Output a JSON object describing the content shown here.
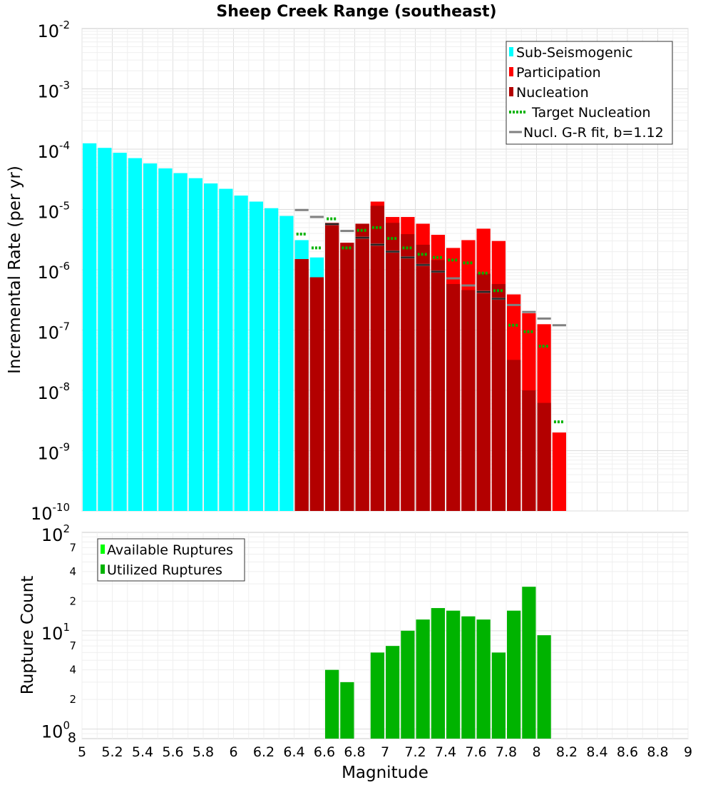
{
  "chart_data": [
    {
      "type": "bar",
      "title": "Sheep Creek Range (southeast)",
      "xlabel": "Magnitude",
      "ylabel": "Incremental Rate (per yr)",
      "yscale": "log",
      "xlim": [
        5,
        9
      ],
      "ylim": [
        1e-10,
        0.01
      ],
      "y_tick_labels": [
        {
          "value": 0.01,
          "base": "10",
          "exp": "-2"
        },
        {
          "value": 0.001,
          "base": "10",
          "exp": "-3"
        },
        {
          "value": 0.0001,
          "base": "10",
          "exp": "-4"
        },
        {
          "value": 1e-05,
          "base": "10",
          "exp": "-5"
        },
        {
          "value": 1e-06,
          "base": "10",
          "exp": "-6"
        },
        {
          "value": 1e-07,
          "base": "10",
          "exp": "-7"
        },
        {
          "value": 1e-08,
          "base": "10",
          "exp": "-8"
        },
        {
          "value": 1e-09,
          "base": "10",
          "exp": "-9"
        },
        {
          "value": 1e-10,
          "base": "10",
          "exp": "-10"
        }
      ],
      "bin_width": 0.1,
      "legend": {
        "position": "top-right",
        "entries": [
          {
            "label": "Sub-Seismogenic",
            "color": "#00ffff",
            "style": "box"
          },
          {
            "label": "Participation",
            "color": "#ff0000",
            "style": "box"
          },
          {
            "label": "Nucleation",
            "color": "#b30000",
            "style": "box"
          },
          {
            "label": "Target Nucleation",
            "color": "#00b300",
            "style": "dotted"
          },
          {
            "label": "Nucl. G-R fit, b=1.12",
            "color": "#808080",
            "style": "line"
          }
        ]
      },
      "series": [
        {
          "name": "Sub-Seismogenic",
          "color": "#00ffff",
          "x": [
            5.05,
            5.15,
            5.25,
            5.35,
            5.45,
            5.55,
            5.65,
            5.75,
            5.85,
            5.95,
            6.05,
            6.15,
            6.25,
            6.35,
            6.45,
            6.55
          ],
          "values": [
            0.000125,
            0.000105,
            8.7e-05,
            7.1e-05,
            5.8e-05,
            4.8e-05,
            4e-05,
            3.3e-05,
            2.7e-05,
            2.2e-05,
            1.7e-05,
            1.35e-05,
            1.05e-05,
            7.8e-06,
            3.1e-06,
            1.6e-06
          ]
        },
        {
          "name": "Participation",
          "color": "#ff0000",
          "x": [
            6.45,
            6.55,
            6.65,
            6.75,
            6.85,
            6.95,
            7.05,
            7.15,
            7.25,
            7.35,
            7.45,
            7.55,
            7.65,
            7.75,
            7.85,
            7.95,
            8.05,
            8.15
          ],
          "values": [
            1.5e-06,
            7.5e-07,
            6e-06,
            2.8e-06,
            5.8e-06,
            1.35e-05,
            7.5e-06,
            7.5e-06,
            5.8e-06,
            3.8e-06,
            2.3e-06,
            3.1e-06,
            4.8e-06,
            3e-06,
            3.9e-07,
            1.9e-07,
            1.25e-07,
            2e-09
          ]
        },
        {
          "name": "Nucleation",
          "color": "#b30000",
          "x": [
            6.45,
            6.55,
            6.65,
            6.75,
            6.85,
            6.95,
            7.05,
            7.15,
            7.25,
            7.35,
            7.45,
            7.55,
            7.65,
            7.75,
            7.85,
            7.95,
            8.05
          ],
          "values": [
            1.5e-06,
            7.5e-07,
            6e-06,
            2.8e-06,
            5.8e-06,
            1.15e-05,
            6e-06,
            3.9e-06,
            2.6e-06,
            1.45e-06,
            5.8e-07,
            4.6e-07,
            8.6e-07,
            5.8e-07,
            3.2e-08,
            1e-08,
            6.2e-09
          ]
        },
        {
          "name": "Target Nucleation",
          "color": "#00b300",
          "x": [
            6.45,
            6.55,
            6.65,
            6.75,
            6.85,
            6.95,
            7.05,
            7.15,
            7.25,
            7.35,
            7.45,
            7.55,
            7.65,
            7.75,
            7.85,
            7.95,
            8.05,
            8.15
          ],
          "values": [
            3.9e-06,
            2.3e-06,
            7e-06,
            2.3e-06,
            4.5e-06,
            5e-06,
            3.3e-06,
            2.3e-06,
            1.8e-06,
            1.6e-06,
            1.45e-06,
            1.3e-06,
            8.8e-07,
            4.5e-07,
            1.2e-07,
            9.4e-08,
            5.4e-08,
            3e-09
          ]
        },
        {
          "name": "Nucl. G-R fit, b=1.12",
          "color": "#808080",
          "x": [
            6.45,
            6.55,
            6.65,
            6.75,
            6.85,
            6.95,
            7.05,
            7.15,
            7.25,
            7.35,
            7.45,
            7.55,
            7.65,
            7.75,
            7.85,
            7.95,
            8.05,
            8.15
          ],
          "values": [
            9.8e-06,
            7.5e-06,
            5.7e-06,
            4.4e-06,
            3.4e-06,
            2.6e-06,
            2e-06,
            1.6e-06,
            1.2e-06,
            9.3e-07,
            7.2e-07,
            5.5e-07,
            4.3e-07,
            3.3e-07,
            2.6e-07,
            2e-07,
            1.55e-07,
            1.2e-07
          ]
        }
      ]
    },
    {
      "type": "bar",
      "xlabel": "Magnitude",
      "ylabel": "Rupture Count",
      "yscale": "log",
      "xlim": [
        5,
        9
      ],
      "ylim": [
        0.8,
        100
      ],
      "x_tick_labels": [
        "5",
        "5.2",
        "5.4",
        "5.6",
        "5.8",
        "6",
        "6.2",
        "6.4",
        "6.6",
        "6.8",
        "7",
        "7.2",
        "7.4",
        "7.6",
        "7.8",
        "8",
        "8.2",
        "8.4",
        "8.6",
        "8.8",
        "9"
      ],
      "y_tick_labels": [
        {
          "value": 100,
          "base": "10",
          "exp": "2"
        },
        {
          "value": 10,
          "base": "10",
          "exp": "1"
        },
        {
          "value": 1,
          "base": "10",
          "exp": "0"
        }
      ],
      "y_minor_labels": [
        {
          "value": 70,
          "label": "7"
        },
        {
          "value": 40,
          "label": "4"
        },
        {
          "value": 20,
          "label": "2"
        },
        {
          "value": 7,
          "label": "7"
        },
        {
          "value": 4,
          "label": "4"
        },
        {
          "value": 2,
          "label": "2"
        },
        {
          "value": 0.8,
          "label": "8"
        }
      ],
      "legend": {
        "position": "top-left",
        "entries": [
          {
            "label": "Available Ruptures",
            "color": "#00ff00"
          },
          {
            "label": "Utilized Ruptures",
            "color": "#00b300"
          }
        ]
      },
      "series": [
        {
          "name": "Utilized Ruptures",
          "color": "#00b300",
          "x": [
            6.65,
            6.75,
            6.95,
            7.05,
            7.15,
            7.25,
            7.35,
            7.45,
            7.55,
            7.65,
            7.75,
            7.85,
            7.95,
            8.05
          ],
          "values": [
            4,
            3,
            6,
            7,
            10,
            13,
            17,
            16,
            14,
            13,
            6,
            16,
            28,
            9
          ]
        }
      ]
    }
  ]
}
